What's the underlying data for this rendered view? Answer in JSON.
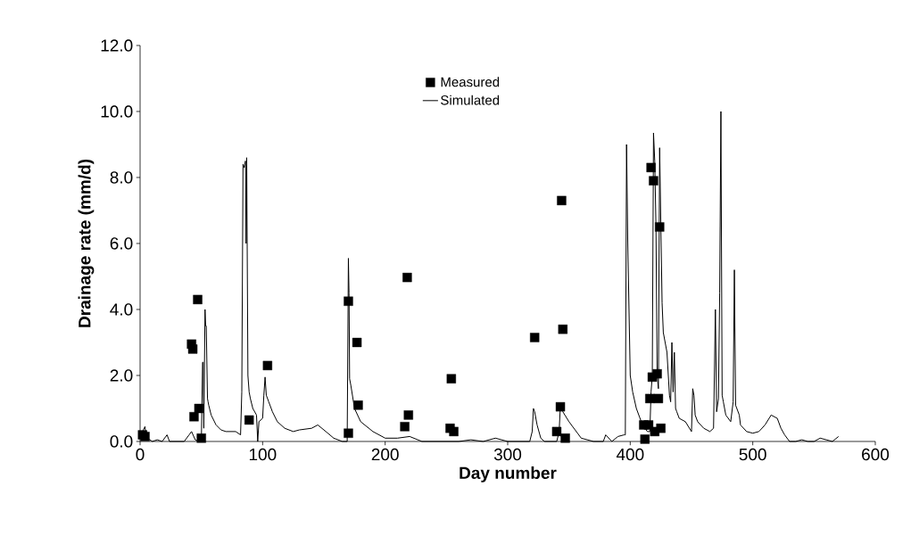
{
  "chart_data": {
    "type": "scatter",
    "xlabel": "Day number",
    "ylabel": "Drainage rate (mm/d)",
    "xlim": [
      0,
      600
    ],
    "ylim": [
      0,
      12
    ],
    "xticks": [
      0,
      100,
      200,
      300,
      400,
      500,
      600
    ],
    "yticks": [
      {
        "value": 0,
        "label": "0.0"
      },
      {
        "value": 2,
        "label": "2.0"
      },
      {
        "value": 4,
        "label": "4.0"
      },
      {
        "value": 6,
        "label": "6.0"
      },
      {
        "value": 8,
        "label": "8.0"
      },
      {
        "value": 10,
        "label": "10.0"
      },
      {
        "value": 12,
        "label": "12.0"
      }
    ],
    "legend": "top",
    "grid": false,
    "series": [
      {
        "name": "Measured",
        "marker": "square",
        "color": "#000000",
        "x": [
          2,
          4,
          42,
          43,
          44,
          47,
          48,
          50,
          89,
          104,
          170,
          170,
          177,
          178,
          216,
          218,
          219,
          253,
          254,
          256,
          322,
          340,
          343,
          344,
          345,
          347,
          411,
          412,
          415,
          416,
          417,
          418,
          419,
          420,
          422,
          423,
          424,
          425
        ],
        "values": [
          0.2,
          0.15,
          2.95,
          2.8,
          0.75,
          4.3,
          1.0,
          0.1,
          0.65,
          2.3,
          4.25,
          0.25,
          3.0,
          1.1,
          0.45,
          4.97,
          0.8,
          0.4,
          1.9,
          0.3,
          3.15,
          0.3,
          1.05,
          7.3,
          3.4,
          0.1,
          0.5,
          0.07,
          0.5,
          1.3,
          8.3,
          1.95,
          7.9,
          0.3,
          2.05,
          1.3,
          6.5,
          0.4
        ]
      },
      {
        "name": "Simulated",
        "type": "line",
        "marker": "none",
        "line_style": "solid",
        "color": "#000000",
        "x": [
          0,
          2,
          4,
          5,
          8,
          10,
          14,
          18,
          22,
          24,
          26,
          30,
          36,
          40,
          42,
          45,
          48,
          50,
          51,
          51.5,
          52,
          53,
          53.5,
          54,
          55,
          55.5,
          56,
          58,
          62,
          66,
          70,
          78,
          82,
          83,
          84,
          85,
          86,
          86.5,
          87,
          88,
          89,
          90,
          92,
          95,
          96,
          97,
          100,
          101,
          102,
          103,
          105,
          108,
          112,
          118,
          125,
          130,
          140,
          145,
          150,
          158,
          165,
          168,
          169,
          170,
          170.5,
          171,
          172,
          175,
          180,
          190,
          200,
          210,
          220,
          230,
          240,
          250,
          260,
          270,
          280,
          290,
          300,
          310,
          318,
          320,
          321,
          322,
          324,
          327,
          330,
          335,
          340,
          342,
          343,
          345,
          350,
          360,
          370,
          378,
          380,
          385,
          390,
          395,
          396,
          397,
          398,
          400,
          402,
          405,
          410,
          414,
          416,
          417,
          418,
          419,
          420,
          421,
          422,
          423,
          424,
          425,
          426,
          427,
          430,
          432,
          433,
          434,
          435,
          436,
          437,
          438,
          440,
          445,
          450,
          451,
          452,
          453,
          455,
          460,
          465,
          468,
          469.5,
          470.5,
          472,
          473,
          474,
          475,
          476,
          478,
          482,
          484,
          485,
          486,
          487,
          489,
          490,
          495,
          500,
          505,
          510,
          515,
          520,
          523,
          526,
          530,
          535,
          540,
          545,
          550,
          555,
          560,
          565,
          570
        ],
        "values": [
          0.1,
          0.3,
          0.45,
          0.1,
          0.05,
          0.0,
          0.05,
          0.0,
          0.2,
          0.0,
          0.0,
          0.0,
          0.0,
          0.2,
          0.3,
          0.05,
          0.0,
          0.0,
          2.4,
          2.4,
          0.4,
          4.0,
          3.5,
          3.5,
          1.3,
          1.2,
          1.1,
          0.8,
          0.5,
          0.35,
          0.3,
          0.3,
          0.2,
          1.5,
          8.4,
          8.3,
          8.5,
          6.0,
          8.6,
          2.0,
          1.5,
          1.3,
          1.0,
          0.8,
          0.0,
          0.6,
          0.7,
          1.4,
          1.95,
          1.4,
          1.2,
          0.9,
          0.6,
          0.4,
          0.3,
          0.35,
          0.4,
          0.5,
          0.35,
          0.1,
          0.0,
          0.0,
          0.0,
          5.55,
          4.5,
          1.9,
          1.7,
          1.0,
          0.6,
          0.3,
          0.1,
          0.1,
          0.15,
          0.0,
          0.0,
          0.0,
          0.0,
          0.05,
          0.0,
          0.1,
          0.0,
          0.0,
          0.0,
          0.3,
          1.0,
          0.9,
          0.5,
          0.1,
          0.0,
          0.0,
          0.0,
          0.3,
          1.1,
          0.9,
          0.6,
          0.1,
          0.0,
          0.0,
          0.2,
          0.0,
          0.15,
          0.2,
          0.2,
          9.0,
          6.0,
          2.0,
          1.5,
          1.0,
          0.5,
          0.3,
          0.3,
          1.5,
          2.0,
          9.35,
          8.5,
          6.5,
          2.0,
          1.6,
          8.9,
          6.5,
          4.2,
          3.3,
          2.7,
          1.4,
          1.2,
          3.0,
          1.5,
          2.7,
          1.0,
          0.9,
          0.7,
          0.6,
          0.3,
          1.6,
          1.4,
          0.8,
          0.6,
          0.4,
          0.3,
          0.4,
          4.0,
          0.9,
          1.3,
          4.5,
          10.0,
          1.4,
          1.2,
          0.8,
          0.6,
          1.2,
          5.2,
          1.1,
          1.0,
          0.8,
          0.5,
          0.3,
          0.25,
          0.3,
          0.5,
          0.8,
          0.7,
          0.4,
          0.2,
          0.0,
          0.0,
          0.05,
          0.0,
          0.0,
          0.1,
          0.05,
          0.0,
          0.15
        ]
      }
    ]
  }
}
